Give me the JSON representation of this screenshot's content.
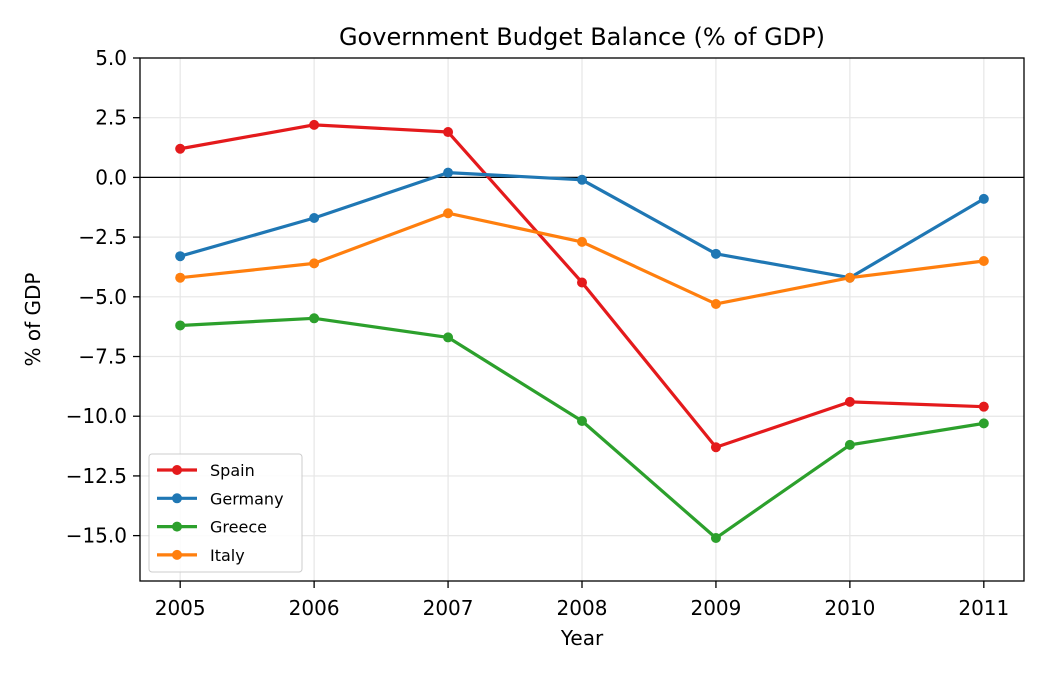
{
  "chart_data": {
    "type": "line",
    "title": "Government Budget Balance (% of GDP)",
    "xlabel": "Year",
    "ylabel": "% of GDP",
    "x": [
      2005,
      2006,
      2007,
      2008,
      2009,
      2010,
      2011
    ],
    "xtick_labels": [
      "2005",
      "2006",
      "2007",
      "2008",
      "2009",
      "2010",
      "2011"
    ],
    "xlim": [
      2004.7,
      2011.3
    ],
    "ylim": [
      -16.9,
      5.0
    ],
    "yticks": [
      5.0,
      2.5,
      0.0,
      -2.5,
      -5.0,
      -7.5,
      -10.0,
      -12.5,
      -15.0
    ],
    "ytick_labels": [
      "5.0",
      "2.5",
      "0.0",
      "−2.5",
      "−5.0",
      "−7.5",
      "−10.0",
      "−12.5",
      "−15.0"
    ],
    "grid": true,
    "zero_line": true,
    "legend_position": "lower-left",
    "series": [
      {
        "name": "Spain",
        "color": "#e41a1c",
        "values": [
          1.2,
          2.2,
          1.9,
          -4.4,
          -11.3,
          -9.4,
          -9.6
        ]
      },
      {
        "name": "Germany",
        "color": "#1f77b4",
        "values": [
          -3.3,
          -1.7,
          0.2,
          -0.1,
          -3.2,
          -4.2,
          -0.9
        ]
      },
      {
        "name": "Greece",
        "color": "#2ca02c",
        "values": [
          -6.2,
          -5.9,
          -6.7,
          -10.2,
          -15.1,
          -11.2,
          -10.3
        ]
      },
      {
        "name": "Italy",
        "color": "#ff7f0e",
        "values": [
          -4.2,
          -3.6,
          -1.5,
          -2.7,
          -5.3,
          -4.2,
          -3.5
        ]
      }
    ]
  }
}
